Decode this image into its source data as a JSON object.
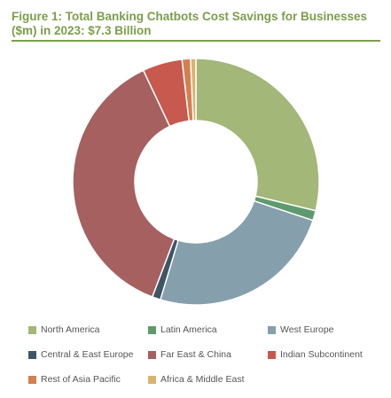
{
  "title": "Figure 1: Total Banking Chatbots Cost Savings for Businesses ($m) in 2023: $7.3 Billion",
  "chart_data": {
    "type": "pie",
    "subtype": "donut",
    "title": "Figure 1: Total Banking Chatbots Cost Savings for Businesses ($m) in 2023: $7.3 Billion",
    "total_label": "$7.3 Billion",
    "legend_position": "bottom",
    "categories": [
      "North America",
      "Latin America",
      "West Europe",
      "Central & East Europe",
      "Far East & China",
      "Indian Subcontinent",
      "Rest of Asia Pacific",
      "Africa & Middle East"
    ],
    "values": [
      28.7,
      1.3,
      24.5,
      1.1,
      37.1,
      5.2,
      1.1,
      0.7
    ],
    "colors": [
      "#a2b778",
      "#5f9a6f",
      "#859fad",
      "#3e5566",
      "#a5605f",
      "#c8594e",
      "#d57e4f",
      "#d9b36f"
    ]
  }
}
